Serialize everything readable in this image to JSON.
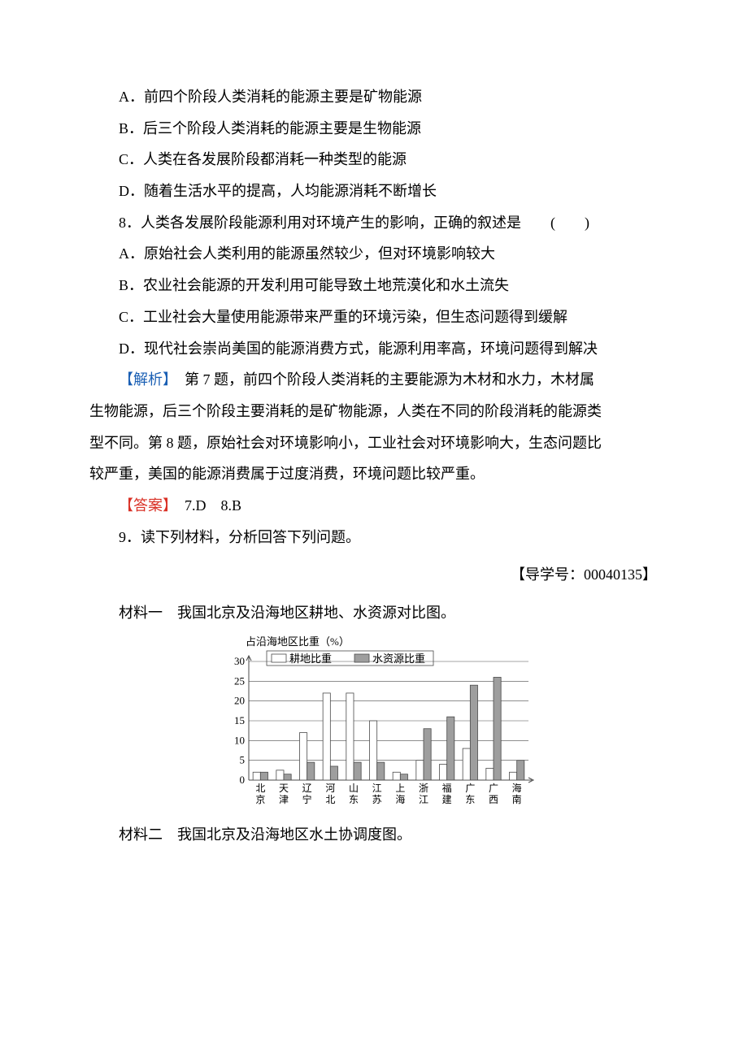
{
  "options": {
    "A": "A．前四个阶段人类消耗的能源主要是矿物能源",
    "B": "B．后三个阶段人类消耗的能源主要是生物能源",
    "C": "C．人类在各发展阶段都消耗一种类型的能源",
    "D": "D．随着生活水平的提高，人均能源消耗不断增长"
  },
  "q8": {
    "stem": "8．人类各发展阶段能源利用对环境产生的影响，正确的叙述是　　(　　)",
    "A": "A．原始社会人类利用的能源虽然较少，但对环境影响较大",
    "B": "B．农业社会能源的开发利用可能导致土地荒漠化和水土流失",
    "C": "C．工业社会大量使用能源带来严重的环境污染，但生态问题得到缓解",
    "D": "D．现代社会崇尚美国的能源消费方式，能源利用率高，环境问题得到解决"
  },
  "explain": {
    "label": "【解析】",
    "text1": "　第 7 题，前四个阶段人类消耗的主要能源为木材和水力，木材属",
    "text2": "生物能源，后三个阶段主要消耗的是矿物能源，人类在不同的阶段消耗的能源类",
    "text3": "型不同。第 8 题，原始社会对环境影响小，工业社会对环境影响大，生态问题比",
    "text4": "较严重，美国的能源消费属于过度消费，环境问题比较严重。"
  },
  "answer": {
    "label": "【答案】",
    "text": "　7.D　8.B"
  },
  "q9": "9．读下列材料，分析回答下列问题。",
  "ref": "【导学号：00040135】",
  "material1": "材料一　我国北京及沿海地区耕地、水资源对比图。",
  "material2": "材料二　我国北京及沿海地区水土协调度图。",
  "chart": {
    "y_title": "占沿海地区比重（%）",
    "legend": {
      "farmland": "耕地比重",
      "water": "水资源比重"
    },
    "y_max": 30,
    "y_step": 5,
    "axis_color": "#4a4a4a",
    "grid_color": "#4a4a4a",
    "bar_colors": {
      "farmland": "#ffffff",
      "water": "#9e9e9e"
    },
    "bar_border": "#4a4a4a",
    "regions": [
      "北京",
      "天津",
      "辽宁",
      "河北",
      "山东",
      "江苏",
      "上海",
      "浙江",
      "福建",
      "广东",
      "广西",
      "海南"
    ],
    "farmland": [
      2.0,
      2.5,
      12.0,
      22.0,
      22.0,
      15.0,
      2.0,
      5.0,
      4.0,
      8.0,
      3.0,
      2.0
    ],
    "water": [
      2.0,
      1.5,
      4.5,
      3.5,
      4.5,
      4.5,
      1.5,
      13.0,
      16.0,
      24.0,
      26.0,
      5.0
    ]
  }
}
